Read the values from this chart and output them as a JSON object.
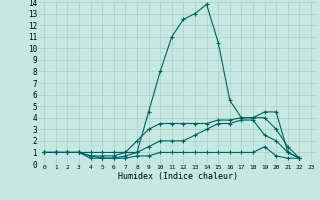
{
  "xlabel": "Humidex (Indice chaleur)",
  "xlim": [
    -0.5,
    23.5
  ],
  "ylim": [
    0,
    14
  ],
  "xticks": [
    0,
    1,
    2,
    3,
    4,
    5,
    6,
    7,
    8,
    9,
    10,
    11,
    12,
    13,
    14,
    15,
    16,
    17,
    18,
    19,
    20,
    21,
    22,
    23
  ],
  "yticks": [
    0,
    1,
    2,
    3,
    4,
    5,
    6,
    7,
    8,
    9,
    10,
    11,
    12,
    13,
    14
  ],
  "background_color": "#c5e8e2",
  "grid_color": "#a8cfc8",
  "line_color": "#006060",
  "lines": [
    [
      0,
      1,
      1,
      1,
      2,
      1,
      3,
      1,
      4,
      1,
      5,
      1,
      6,
      1,
      7,
      1,
      8,
      1,
      9,
      4.5,
      10,
      8,
      11,
      11,
      12,
      12.5,
      13,
      13,
      14,
      13.8,
      15,
      10.5,
      16,
      5.5,
      17,
      4,
      18,
      4,
      19,
      4.5,
      20,
      4.5,
      21,
      1,
      22,
      0.5
    ],
    [
      0,
      1,
      1,
      1,
      2,
      1,
      3,
      1,
      4,
      0.7,
      5,
      0.7,
      6,
      0.7,
      7,
      1,
      8,
      2,
      9,
      3,
      10,
      3.5,
      11,
      3.5,
      12,
      3.5,
      13,
      3.5,
      14,
      3.5,
      15,
      3.8,
      16,
      3.8,
      17,
      4,
      18,
      4,
      19,
      4,
      20,
      3,
      21,
      1.5,
      22,
      0.5
    ],
    [
      0,
      1,
      1,
      1,
      2,
      1,
      3,
      1,
      4,
      0.7,
      5,
      0.5,
      6,
      0.5,
      7,
      0.7,
      8,
      1,
      9,
      1.5,
      10,
      2,
      11,
      2,
      12,
      2,
      13,
      2.5,
      14,
      3,
      15,
      3.5,
      16,
      3.5,
      17,
      3.8,
      18,
      3.8,
      19,
      2.5,
      20,
      2,
      21,
      1,
      22,
      0.5
    ],
    [
      0,
      1,
      1,
      1,
      2,
      1,
      3,
      1,
      4,
      0.5,
      5,
      0.5,
      6,
      0.5,
      7,
      0.5,
      8,
      0.7,
      9,
      0.7,
      10,
      1,
      11,
      1,
      12,
      1,
      13,
      1,
      14,
      1,
      15,
      1,
      16,
      1,
      17,
      1,
      18,
      1,
      19,
      1.5,
      20,
      0.7,
      21,
      0.5,
      22,
      0.5
    ]
  ]
}
